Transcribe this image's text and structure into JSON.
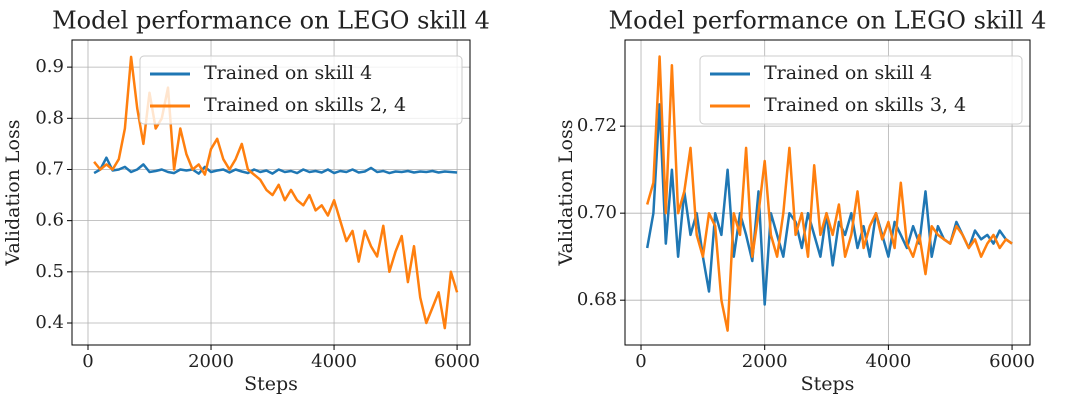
{
  "chart_data": [
    {
      "type": "line",
      "title": "Model performance on LEGO skill 4",
      "xlabel": "Steps",
      "ylabel": "Validation Loss",
      "x": [
        100,
        200,
        300,
        400,
        500,
        600,
        700,
        800,
        900,
        1000,
        1100,
        1200,
        1300,
        1400,
        1500,
        1600,
        1700,
        1800,
        1900,
        2000,
        2100,
        2200,
        2300,
        2400,
        2500,
        2600,
        2700,
        2800,
        2900,
        3000,
        3100,
        3200,
        3300,
        3400,
        3500,
        3600,
        3700,
        3800,
        3900,
        4000,
        4100,
        4200,
        4300,
        4400,
        4500,
        4600,
        4700,
        4800,
        4900,
        5000,
        5100,
        5200,
        5300,
        5400,
        5500,
        5600,
        5700,
        5800,
        5900,
        6000
      ],
      "series": [
        {
          "name": "Trained on skill 4",
          "color": "#1f77b4",
          "values": [
            0.693,
            0.7,
            0.723,
            0.698,
            0.7,
            0.705,
            0.695,
            0.7,
            0.71,
            0.695,
            0.697,
            0.7,
            0.695,
            0.693,
            0.7,
            0.698,
            0.7,
            0.692,
            0.705,
            0.695,
            0.698,
            0.7,
            0.694,
            0.7,
            0.696,
            0.693,
            0.7,
            0.695,
            0.698,
            0.692,
            0.7,
            0.695,
            0.697,
            0.693,
            0.7,
            0.695,
            0.697,
            0.694,
            0.7,
            0.693,
            0.697,
            0.695,
            0.7,
            0.694,
            0.696,
            0.703,
            0.695,
            0.697,
            0.693,
            0.696,
            0.695,
            0.697,
            0.694,
            0.696,
            0.695,
            0.697,
            0.694,
            0.696,
            0.695,
            0.694
          ]
        },
        {
          "name": "Trained on skills 2, 4",
          "color": "#ff7f0e",
          "values": [
            0.715,
            0.7,
            0.71,
            0.7,
            0.72,
            0.78,
            0.92,
            0.82,
            0.75,
            0.85,
            0.78,
            0.8,
            0.86,
            0.7,
            0.78,
            0.73,
            0.7,
            0.71,
            0.69,
            0.74,
            0.76,
            0.72,
            0.7,
            0.72,
            0.75,
            0.7,
            0.69,
            0.68,
            0.66,
            0.65,
            0.67,
            0.64,
            0.66,
            0.64,
            0.63,
            0.65,
            0.62,
            0.63,
            0.61,
            0.64,
            0.6,
            0.56,
            0.58,
            0.52,
            0.58,
            0.55,
            0.53,
            0.59,
            0.5,
            0.54,
            0.57,
            0.48,
            0.55,
            0.45,
            0.4,
            0.43,
            0.46,
            0.39,
            0.5,
            0.46
          ]
        }
      ],
      "xlim": [
        -260,
        6210
      ],
      "ylim": [
        0.357,
        0.953
      ],
      "xticks": [
        0,
        2000,
        4000,
        6000
      ],
      "yticks": [
        0.4,
        0.5,
        0.6,
        0.7,
        0.8,
        0.9
      ],
      "grid": true,
      "legend": "upper right"
    },
    {
      "type": "line",
      "title": "Model performance on LEGO skill 4",
      "xlabel": "Steps",
      "ylabel": "Validation Loss",
      "x": [
        100,
        200,
        300,
        400,
        500,
        600,
        700,
        800,
        900,
        1000,
        1100,
        1200,
        1300,
        1400,
        1500,
        1600,
        1700,
        1800,
        1900,
        2000,
        2100,
        2200,
        2300,
        2400,
        2500,
        2600,
        2700,
        2800,
        2900,
        3000,
        3100,
        3200,
        3300,
        3400,
        3500,
        3600,
        3700,
        3800,
        3900,
        4000,
        4100,
        4200,
        4300,
        4400,
        4500,
        4600,
        4700,
        4800,
        4900,
        5000,
        5100,
        5200,
        5300,
        5400,
        5500,
        5600,
        5700,
        5800,
        5900,
        6000
      ],
      "series": [
        {
          "name": "Trained on skill 4",
          "color": "#1f77b4",
          "values": [
            0.692,
            0.7,
            0.725,
            0.693,
            0.71,
            0.69,
            0.705,
            0.695,
            0.7,
            0.69,
            0.682,
            0.7,
            0.695,
            0.71,
            0.69,
            0.7,
            0.695,
            0.689,
            0.705,
            0.679,
            0.7,
            0.695,
            0.69,
            0.7,
            0.698,
            0.692,
            0.7,
            0.695,
            0.69,
            0.7,
            0.688,
            0.698,
            0.695,
            0.7,
            0.692,
            0.697,
            0.69,
            0.7,
            0.695,
            0.69,
            0.698,
            0.695,
            0.692,
            0.697,
            0.693,
            0.705,
            0.69,
            0.697,
            0.694,
            0.693,
            0.698,
            0.695,
            0.692,
            0.696,
            0.694,
            0.695,
            0.693,
            0.696,
            0.694,
            0.693
          ]
        },
        {
          "name": "Trained on skills 3, 4",
          "color": "#ff7f0e",
          "values": [
            0.702,
            0.707,
            0.736,
            0.7,
            0.734,
            0.7,
            0.705,
            0.715,
            0.695,
            0.69,
            0.7,
            0.697,
            0.68,
            0.673,
            0.7,
            0.695,
            0.715,
            0.69,
            0.7,
            0.712,
            0.695,
            0.69,
            0.7,
            0.715,
            0.695,
            0.7,
            0.69,
            0.711,
            0.695,
            0.7,
            0.695,
            0.702,
            0.69,
            0.695,
            0.705,
            0.692,
            0.697,
            0.7,
            0.694,
            0.698,
            0.692,
            0.707,
            0.693,
            0.69,
            0.695,
            0.686,
            0.697,
            0.695,
            0.694,
            0.693,
            0.697,
            0.695,
            0.692,
            0.694,
            0.69,
            0.693,
            0.695,
            0.692,
            0.694,
            0.693
          ]
        }
      ],
      "xlim": [
        -259,
        6290
      ],
      "ylim": [
        0.6697,
        0.7398
      ],
      "xticks": [
        0,
        2000,
        4000,
        6000
      ],
      "yticks": [
        0.68,
        {
          "value": 0.7,
          "label": "0.70"
        },
        0.72
      ],
      "grid": true,
      "legend": "upper right"
    }
  ]
}
